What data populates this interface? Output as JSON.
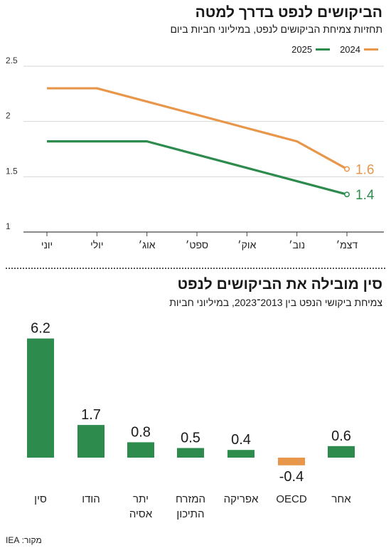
{
  "chart1": {
    "title": "הביקושים לנפט בדרך למטה",
    "subtitle": "תחזיות צמיחת הביקושים לנפט, במיליוני חביות ביום",
    "chart_data": {
      "type": "line",
      "categories": [
        "יוני",
        "יולי",
        "אוג׳",
        "ספט׳",
        "אוק׳",
        "נוב׳",
        "דצמ׳"
      ],
      "series": [
        {
          "name": "2024",
          "color": "#e8974a",
          "values": [
            2.3,
            2.3,
            2.18,
            2.06,
            1.94,
            1.82,
            1.57
          ],
          "end_label": "1.6"
        },
        {
          "name": "2025",
          "color": "#2e8b4e",
          "values": [
            1.82,
            1.82,
            1.82,
            1.7,
            1.58,
            1.46,
            1.34
          ],
          "end_label": "1.4"
        }
      ],
      "y_ticks": [
        "1",
        "1.5",
        "2",
        "2.5"
      ],
      "ylim": [
        1,
        2.5
      ],
      "grid": true,
      "legend": "top-right"
    }
  },
  "chart2": {
    "title": "סין מובילה את הביקושים לנפט",
    "subtitle": "צמיחת ביקושי הנפט בין 2013־2023, במיליוני חביות",
    "chart_data": {
      "type": "bar",
      "categories": [
        "סין",
        "הודו",
        "יתר אסיה",
        "המזרח התיכון",
        "אפריקה",
        "OECD",
        "אחר"
      ],
      "category_lines": [
        [
          "סין"
        ],
        [
          "הודו"
        ],
        [
          "יתר",
          "אסיה"
        ],
        [
          "המזרח",
          "התיכון"
        ],
        [
          "אפריקה"
        ],
        [
          "OECD"
        ],
        [
          "אחר"
        ]
      ],
      "values": [
        6.2,
        1.7,
        0.8,
        0.5,
        0.4,
        -0.4,
        0.6
      ],
      "labels": [
        "6.2",
        "1.7",
        "0.8",
        "0.5",
        "0.4",
        "-0.4",
        "0.6"
      ],
      "colors": [
        "#2e8b4e",
        "#2e8b4e",
        "#2e8b4e",
        "#2e8b4e",
        "#2e8b4e",
        "#e8974a",
        "#2e8b4e"
      ]
    }
  },
  "source": "מקור: IEA"
}
